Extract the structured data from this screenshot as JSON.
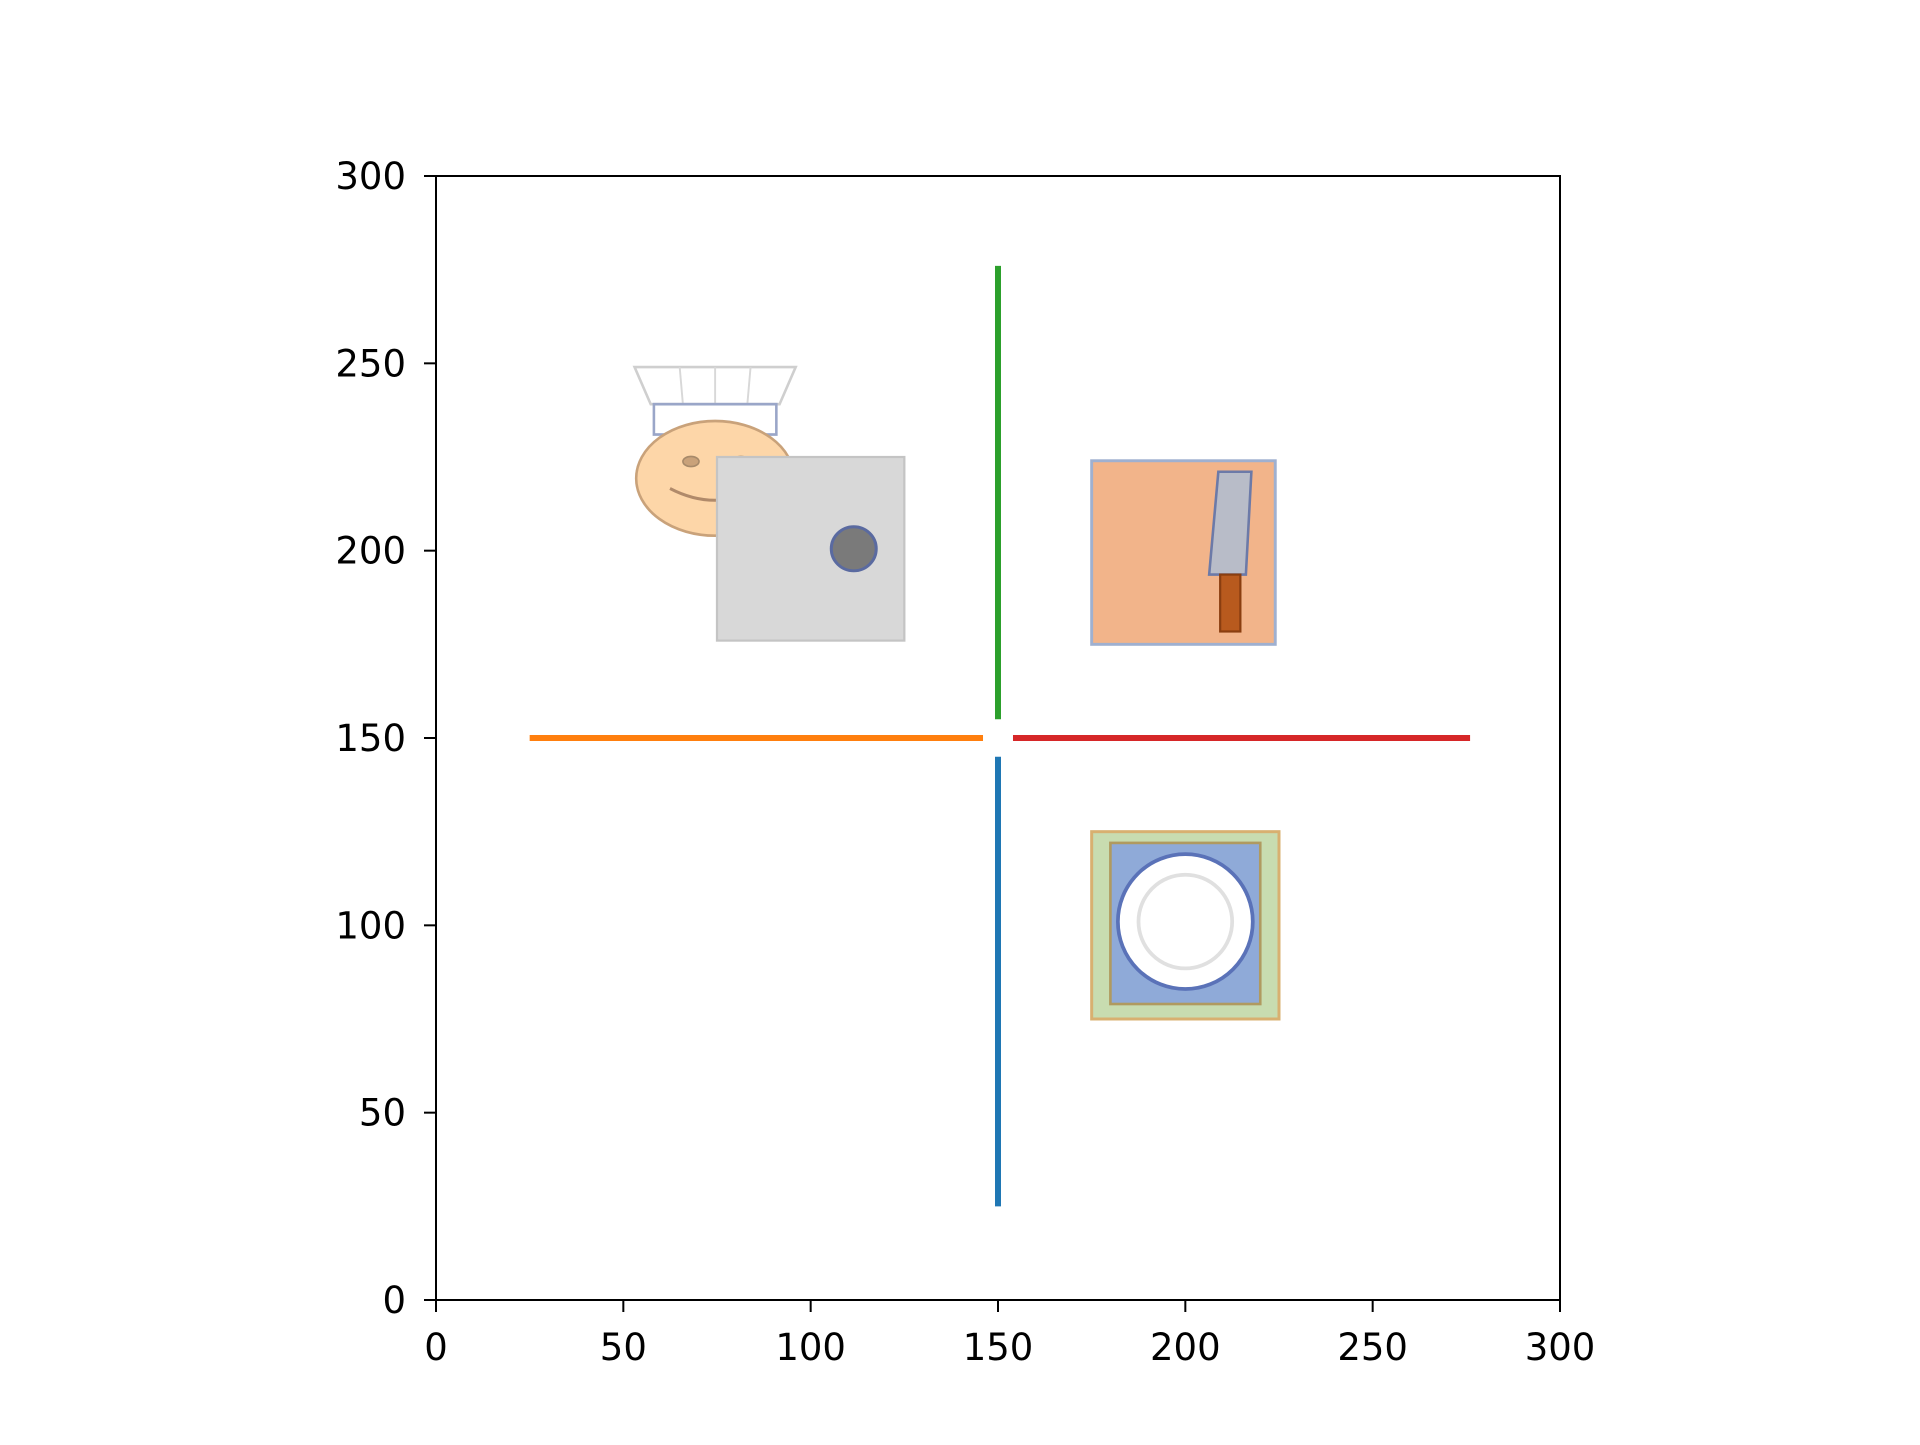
{
  "chart_data": {
    "type": "scatter",
    "title": "",
    "xlabel": "",
    "ylabel": "",
    "xlim": [
      0,
      300
    ],
    "ylim": [
      0,
      300
    ],
    "grid": false,
    "x_ticks": [
      "0",
      "50",
      "100",
      "150",
      "200",
      "250",
      "300"
    ],
    "y_ticks": [
      "0",
      "50",
      "100",
      "150",
      "200",
      "250",
      "300"
    ],
    "paths": [
      {
        "color": "#1f77b4",
        "points": [
          [
            150,
            145
          ],
          [
            150,
            25
          ]
        ]
      },
      {
        "color": "#ff7f0e",
        "points": [
          [
            146,
            150
          ],
          [
            25,
            150
          ]
        ]
      },
      {
        "color": "#2ca02c",
        "points": [
          [
            150,
            155
          ],
          [
            150,
            276
          ]
        ]
      },
      {
        "color": "#d62728",
        "points": [
          [
            154,
            150
          ],
          [
            276,
            150
          ]
        ]
      }
    ],
    "sprites": [
      {
        "icon": "chef-icon",
        "x": [
          53,
          96
        ],
        "y": [
          204,
          249
        ]
      },
      {
        "icon": "stove-icon",
        "x": [
          75,
          125
        ],
        "y": [
          176,
          225
        ]
      },
      {
        "icon": "cutting-board-knife-icon",
        "x": [
          175,
          224
        ],
        "y": [
          175,
          224
        ]
      },
      {
        "icon": "plate-icon",
        "x": [
          175,
          225
        ],
        "y": [
          75,
          125
        ]
      }
    ]
  }
}
